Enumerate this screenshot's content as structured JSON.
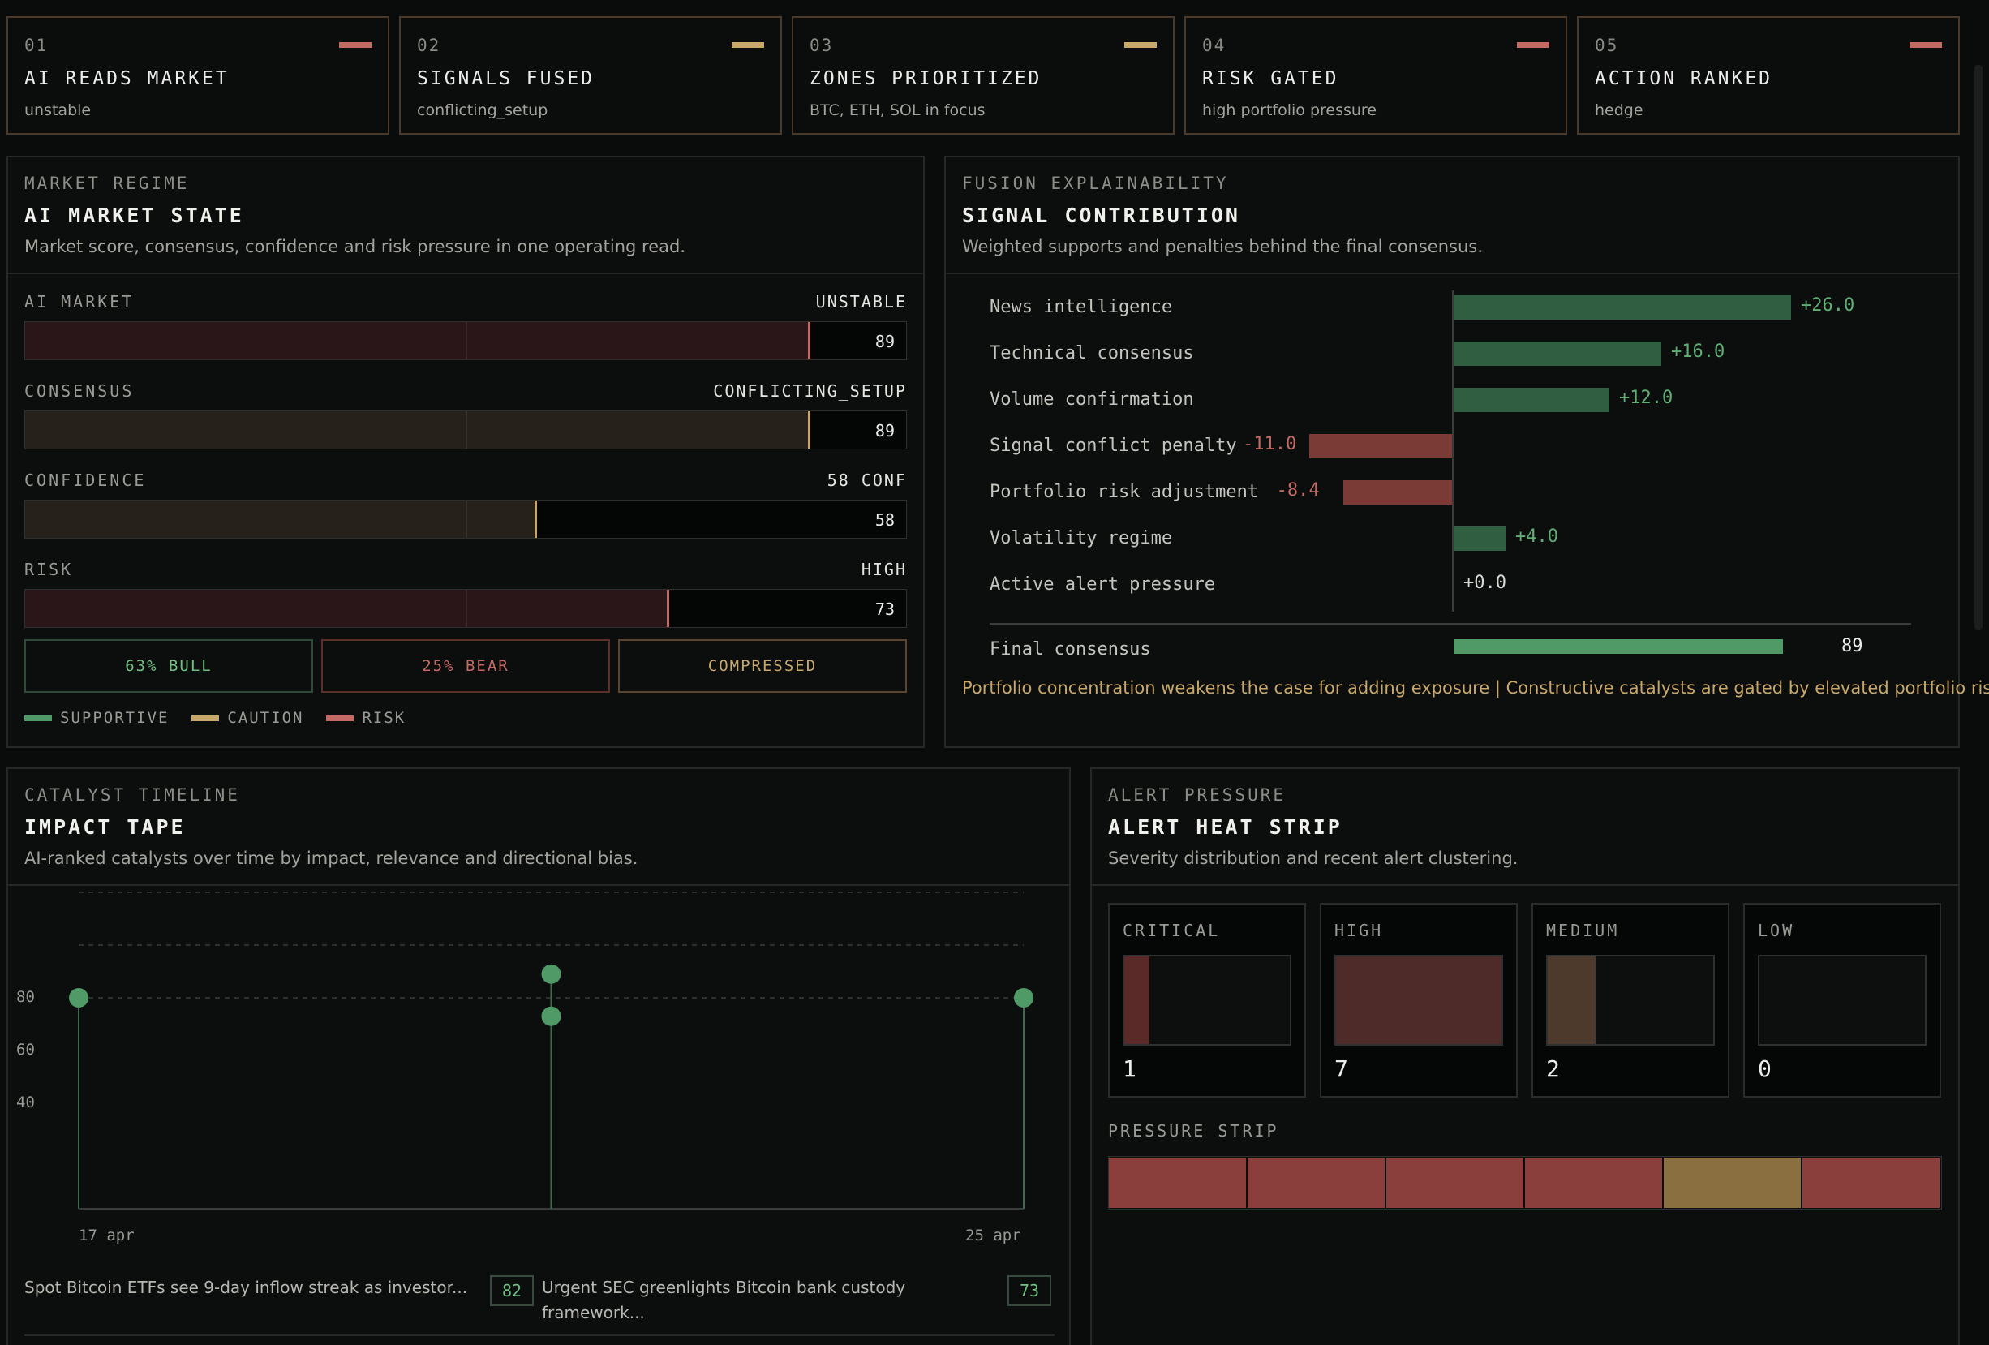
{
  "pipeline": [
    {
      "num": "01",
      "title": "AI READS MARKET",
      "sub": "unstable",
      "tick_color": "#c46a64"
    },
    {
      "num": "02",
      "title": "SIGNALS FUSED",
      "sub": "conflicting_setup",
      "tick_color": "#c7a86a"
    },
    {
      "num": "03",
      "title": "ZONES PRIORITIZED",
      "sub": "BTC, ETH, SOL in focus",
      "tick_color": "#c7a86a"
    },
    {
      "num": "04",
      "title": "RISK GATED",
      "sub": "high portfolio pressure",
      "tick_color": "#c46a64"
    },
    {
      "num": "05",
      "title": "ACTION RANKED",
      "sub": "hedge",
      "tick_color": "#c46a64"
    }
  ],
  "regime": {
    "eyebrow": "MARKET REGIME",
    "title": "AI MARKET STATE",
    "desc": "Market score, consensus, confidence and risk pressure in one operating read.",
    "gauges": [
      {
        "label": "AI MARKET",
        "state": "UNSTABLE",
        "value": 89,
        "tone": "risk"
      },
      {
        "label": "CONSENSUS",
        "state": "CONFLICTING_SETUP",
        "value": 89,
        "tone": "caution"
      },
      {
        "label": "CONFIDENCE",
        "state": "58 CONF",
        "value": 58,
        "tone": "caution"
      },
      {
        "label": "RISK",
        "state": "HIGH",
        "value": 73,
        "tone": "risk"
      }
    ],
    "pills": [
      "63% BULL",
      "25% BEAR",
      "COMPRESSED"
    ],
    "legend": [
      "SUPPORTIVE",
      "CAUTION",
      "RISK"
    ]
  },
  "colors": {
    "supportive": "#4f9a66",
    "caution": "#c7a86a",
    "risk": "#c46a64",
    "bar_positive": "#2f5e41",
    "bar_negative": "#7a3a36",
    "final": "#4f9a66"
  },
  "fusion": {
    "eyebrow": "FUSION EXPLAINABILITY",
    "title": "SIGNAL CONTRIBUTION",
    "desc": "Weighted supports and penalties behind the final consensus.",
    "rows": [
      {
        "label": "News intelligence",
        "value": 26.0,
        "text": "+26.0"
      },
      {
        "label": "Technical consensus",
        "value": 16.0,
        "text": "+16.0"
      },
      {
        "label": "Volume confirmation",
        "value": 12.0,
        "text": "+12.0"
      },
      {
        "label": "Signal conflict penalty",
        "value": -11.0,
        "text": "-11.0"
      },
      {
        "label": "Portfolio risk adjustment",
        "value": -8.4,
        "text": "-8.4"
      },
      {
        "label": "Volatility regime",
        "value": 4.0,
        "text": "+4.0"
      },
      {
        "label": "Active alert pressure",
        "value": 0.0,
        "text": "+0.0"
      }
    ],
    "final_label": "Final consensus",
    "final_value": 89,
    "note": "Portfolio concentration weakens the case for adding exposure | Constructive catalysts are gated by elevated portfolio risk"
  },
  "catalyst": {
    "eyebrow": "CATALYST TIMELINE",
    "title": "IMPACT TAPE",
    "desc": "AI-ranked catalysts over time by impact, relevance and directional bias.",
    "y_ticks": [
      "80",
      "60",
      "40"
    ],
    "x_ticks": [
      "17 apr",
      "25 apr"
    ],
    "news": [
      {
        "text": "Spot Bitcoin ETFs see 9-day inflow streak as investor...",
        "score": "82"
      },
      {
        "text": "Urgent SEC greenlights Bitcoin bank custody framework...",
        "score": "73"
      }
    ]
  },
  "chart_data": {
    "type": "scatter",
    "title": "IMPACT TAPE",
    "x_ticks": [
      "17 apr",
      "25 apr"
    ],
    "y_ticks": [
      40,
      60,
      80
    ],
    "ylim": [
      0,
      90
    ],
    "xlim": [
      "2025-04-17",
      "2025-04-25"
    ],
    "points": [
      {
        "x": "2025-04-17",
        "y": 80
      },
      {
        "x": "2025-04-21",
        "y": 87
      },
      {
        "x": "2025-04-21",
        "y": 71
      },
      {
        "x": "2025-04-25",
        "y": 80
      }
    ],
    "grid": true
  },
  "alerts": {
    "eyebrow": "ALERT PRESSURE",
    "title": "ALERT HEAT STRIP",
    "desc": "Severity distribution and recent alert clustering.",
    "severity": [
      {
        "label": "CRITICAL",
        "count": "1",
        "fill": 0.15,
        "color": "#5a2a28"
      },
      {
        "label": "HIGH",
        "count": "7",
        "fill": 1.0,
        "color": "#4e2a28"
      },
      {
        "label": "MEDIUM",
        "count": "2",
        "fill": 0.29,
        "color": "#4e3a2c"
      },
      {
        "label": "LOW",
        "count": "0",
        "fill": 0.0,
        "color": "#2a2c2b"
      }
    ],
    "strip_label": "PRESSURE STRIP",
    "strip": [
      "#8a3f3c",
      "#8a3f3c",
      "#8a3f3c",
      "#8a3f3c",
      "#8a7040",
      "#8a3f3c"
    ]
  }
}
